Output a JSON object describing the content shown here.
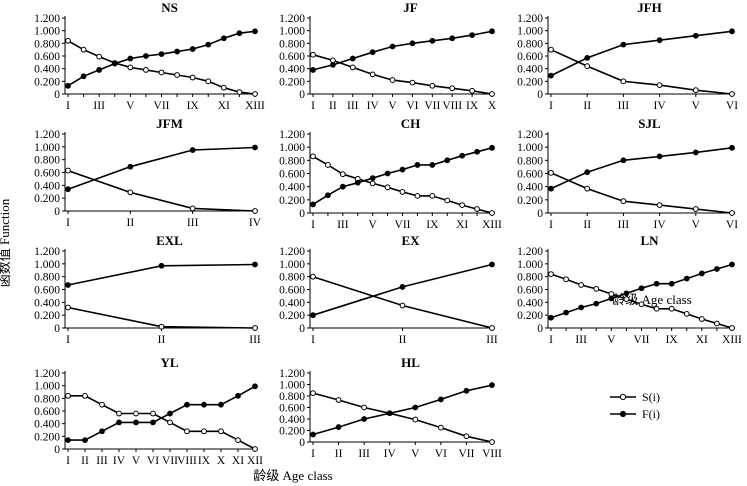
{
  "figure": {
    "ylabel": "函数值 Function",
    "xlabel": "龄级 Age class",
    "legend": [
      {
        "name": "S(i)",
        "marker": "open",
        "key": "S"
      },
      {
        "name": "F(i)",
        "marker": "filled",
        "key": "F"
      }
    ],
    "colors": {
      "line": "#000000",
      "background": "#ffffff"
    }
  },
  "chart_data": [
    {
      "type": "line",
      "title": "NS",
      "ylim": [
        0,
        1.2
      ],
      "yticks": [
        "0",
        "0.200",
        "0.400",
        "0.600",
        "0.800",
        "1.000",
        "1.200"
      ],
      "categories": [
        "I",
        "",
        "III",
        "",
        "V",
        "",
        "VII",
        "",
        "IX",
        "",
        "XI",
        "",
        "XIII"
      ],
      "series": [
        {
          "name": "S(i)",
          "values": [
            0.84,
            0.7,
            0.59,
            0.49,
            0.42,
            0.38,
            0.34,
            0.3,
            0.26,
            0.2,
            0.1,
            0.03,
            0.0
          ]
        },
        {
          "name": "F(i)",
          "values": [
            0.13,
            0.28,
            0.38,
            0.48,
            0.56,
            0.6,
            0.63,
            0.67,
            0.71,
            0.78,
            0.88,
            0.96,
            0.99
          ]
        }
      ]
    },
    {
      "type": "line",
      "title": "JF",
      "ylim": [
        0,
        1.2
      ],
      "yticks": [
        "0",
        "0.200",
        "0.400",
        "0.600",
        "0.800",
        "1.000",
        "1.200"
      ],
      "categories": [
        "I",
        "II",
        "III",
        "IV",
        "V",
        "VI",
        "VII",
        "VIII",
        "IX",
        "X"
      ],
      "series": [
        {
          "name": "S(i)",
          "values": [
            0.62,
            0.53,
            0.42,
            0.31,
            0.22,
            0.18,
            0.13,
            0.09,
            0.05,
            0.0
          ]
        },
        {
          "name": "F(i)",
          "values": [
            0.38,
            0.46,
            0.56,
            0.66,
            0.75,
            0.8,
            0.84,
            0.88,
            0.93,
            0.99
          ]
        }
      ]
    },
    {
      "type": "line",
      "title": "JFH",
      "ylim": [
        0,
        1.2
      ],
      "yticks": [
        "0",
        "0.200",
        "0.400",
        "0.600",
        "0.800",
        "1.000",
        "1.200"
      ],
      "categories": [
        "I",
        "II",
        "III",
        "IV",
        "V",
        "VI"
      ],
      "series": [
        {
          "name": "S(i)",
          "values": [
            0.7,
            0.44,
            0.2,
            0.14,
            0.06,
            0.0
          ]
        },
        {
          "name": "F(i)",
          "values": [
            0.29,
            0.57,
            0.78,
            0.85,
            0.92,
            0.99
          ]
        }
      ]
    },
    {
      "type": "line",
      "title": "JFM",
      "ylim": [
        0,
        1.2
      ],
      "yticks": [
        "0",
        "0.200",
        "0.400",
        "0.600",
        "0.800",
        "1.000",
        "1.200"
      ],
      "categories": [
        "I",
        "II",
        "III",
        "IV"
      ],
      "series": [
        {
          "name": "S(i)",
          "values": [
            0.63,
            0.29,
            0.04,
            0.0
          ]
        },
        {
          "name": "F(i)",
          "values": [
            0.34,
            0.69,
            0.95,
            0.99
          ]
        }
      ]
    },
    {
      "type": "line",
      "title": "CH",
      "ylim": [
        0,
        1.2
      ],
      "yticks": [
        "0",
        "0.200",
        "0.400",
        "0.600",
        "0.800",
        "1.000",
        "1.200"
      ],
      "categories": [
        "I",
        "",
        "III",
        "",
        "V",
        "",
        "VII",
        "",
        "IX",
        "",
        "XI",
        "",
        "XIII"
      ],
      "series": [
        {
          "name": "S(i)",
          "values": [
            0.86,
            0.73,
            0.59,
            0.52,
            0.45,
            0.39,
            0.32,
            0.26,
            0.26,
            0.19,
            0.12,
            0.06,
            0.0
          ]
        },
        {
          "name": "F(i)",
          "values": [
            0.13,
            0.27,
            0.4,
            0.46,
            0.53,
            0.6,
            0.66,
            0.73,
            0.73,
            0.8,
            0.87,
            0.93,
            0.99
          ]
        }
      ]
    },
    {
      "type": "line",
      "title": "SJL",
      "ylim": [
        0,
        1.2
      ],
      "yticks": [
        "0",
        "0.200",
        "0.400",
        "0.600",
        "0.800",
        "1.000",
        "1.200"
      ],
      "categories": [
        "I",
        "II",
        "III",
        "IV",
        "V",
        "VI"
      ],
      "series": [
        {
          "name": "S(i)",
          "values": [
            0.61,
            0.37,
            0.18,
            0.12,
            0.06,
            0.0
          ]
        },
        {
          "name": "F(i)",
          "values": [
            0.37,
            0.62,
            0.8,
            0.86,
            0.92,
            0.99
          ]
        }
      ]
    },
    {
      "type": "line",
      "title": "EXL",
      "ylim": [
        0,
        1.2
      ],
      "yticks": [
        "0",
        "0.200",
        "0.400",
        "0.600",
        "0.800",
        "1.000",
        "1.200"
      ],
      "categories": [
        "I",
        "II",
        "III"
      ],
      "series": [
        {
          "name": "S(i)",
          "values": [
            0.32,
            0.02,
            0.0
          ]
        },
        {
          "name": "F(i)",
          "values": [
            0.67,
            0.97,
            0.99
          ]
        }
      ]
    },
    {
      "type": "line",
      "title": "EX",
      "ylim": [
        0,
        1.2
      ],
      "yticks": [
        "0",
        "0.200",
        "0.400",
        "0.600",
        "0.800",
        "1.000",
        "1.200"
      ],
      "categories": [
        "I",
        "II",
        "III"
      ],
      "series": [
        {
          "name": "S(i)",
          "values": [
            0.8,
            0.35,
            0.0
          ]
        },
        {
          "name": "F(i)",
          "values": [
            0.2,
            0.64,
            0.99
          ]
        }
      ]
    },
    {
      "type": "line",
      "title": "LN",
      "ylim": [
        0,
        1.2
      ],
      "yticks": [
        "0",
        "0.200",
        "0.400",
        "0.600",
        "0.800",
        "1.000",
        "1.200"
      ],
      "categories": [
        "I",
        "",
        "III",
        "",
        "V",
        "",
        "VII",
        "",
        "IX",
        "",
        "XI",
        "",
        "XIII"
      ],
      "series": [
        {
          "name": "S(i)",
          "values": [
            0.84,
            0.76,
            0.67,
            0.61,
            0.53,
            0.45,
            0.37,
            0.3,
            0.3,
            0.22,
            0.14,
            0.07,
            0.0
          ]
        },
        {
          "name": "F(i)",
          "values": [
            0.16,
            0.24,
            0.32,
            0.38,
            0.46,
            0.54,
            0.62,
            0.69,
            0.69,
            0.77,
            0.85,
            0.92,
            0.99
          ]
        }
      ]
    },
    {
      "type": "line",
      "title": "YL",
      "ylim": [
        0,
        1.2
      ],
      "yticks": [
        "0",
        "0.200",
        "0.400",
        "0.600",
        "0.800",
        "1.000",
        "1.200"
      ],
      "categories": [
        "I",
        "II",
        "III",
        "IV",
        "V",
        "VI",
        "VII",
        "VIII",
        "IX",
        "X",
        "XI",
        "XII"
      ],
      "series": [
        {
          "name": "S(i)",
          "values": [
            0.84,
            0.84,
            0.7,
            0.56,
            0.56,
            0.56,
            0.42,
            0.28,
            0.28,
            0.28,
            0.14,
            0.0
          ]
        },
        {
          "name": "F(i)",
          "values": [
            0.14,
            0.14,
            0.28,
            0.42,
            0.42,
            0.42,
            0.56,
            0.7,
            0.7,
            0.7,
            0.84,
            0.99
          ]
        }
      ]
    },
    {
      "type": "line",
      "title": "HL",
      "ylim": [
        0,
        1.2
      ],
      "yticks": [
        "0",
        "0.200",
        "0.400",
        "0.600",
        "0.800",
        "1.000",
        "1.200"
      ],
      "categories": [
        "I",
        "II",
        "III",
        "IV",
        "V",
        "VI",
        "VII",
        "VIII"
      ],
      "series": [
        {
          "name": "S(i)",
          "values": [
            0.85,
            0.73,
            0.6,
            0.5,
            0.39,
            0.25,
            0.1,
            0.0
          ]
        },
        {
          "name": "F(i)",
          "values": [
            0.13,
            0.26,
            0.4,
            0.5,
            0.6,
            0.74,
            0.89,
            0.99
          ]
        }
      ]
    }
  ]
}
